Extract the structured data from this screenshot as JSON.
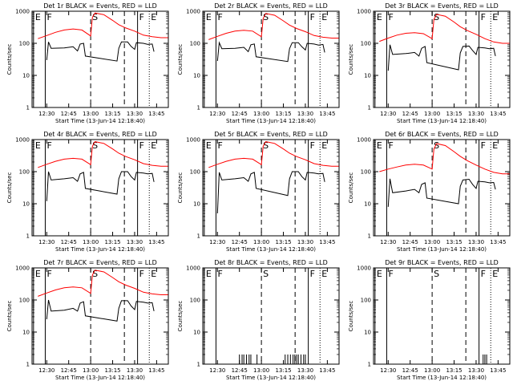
{
  "chart_data": {
    "type": "line",
    "layout": "3x3 grid",
    "y_scale": "log",
    "ylim": [
      1,
      1000
    ],
    "xlim_label_range": [
      "12:20",
      "13:53"
    ],
    "ylabel": "Counts/sec",
    "xlabel": "Start Time (13-Jun-14 12:18:40)",
    "x_tick_labels": [
      "12:30",
      "12:45",
      "13:00",
      "13:15",
      "13:30",
      "13:45"
    ],
    "y_tick_labels": [
      "1",
      "10",
      "100",
      "1000"
    ],
    "colors": {
      "events": "#000000",
      "lld": "#ff0000"
    },
    "markers": [
      {
        "label": "E",
        "time": "12:21",
        "style": "solid"
      },
      {
        "label": "F",
        "time": "12:29",
        "style": "solid"
      },
      {
        "label": "S",
        "time": "13:00",
        "style": "dashed"
      },
      {
        "label": "",
        "time": "13:23",
        "style": "dashed"
      },
      {
        "label": "F",
        "time": "13:32",
        "style": "solid"
      },
      {
        "label": "E",
        "time": "13:40",
        "style": "dotted"
      }
    ],
    "panels": [
      {
        "title": "Det 1r BLACK = Events, RED = LLD",
        "lld": [
          [
            12.4,
            140
          ],
          [
            12.5,
            175
          ],
          [
            12.6,
            220
          ],
          [
            12.7,
            260
          ],
          [
            12.8,
            280
          ],
          [
            12.9,
            260
          ],
          [
            13.0,
            170
          ],
          [
            13.02,
            650
          ],
          [
            13.05,
            880
          ],
          [
            13.15,
            780
          ],
          [
            13.25,
            520
          ],
          [
            13.32,
            380
          ],
          [
            13.4,
            300
          ],
          [
            13.5,
            240
          ],
          [
            13.6,
            180
          ],
          [
            13.7,
            160
          ],
          [
            13.8,
            150
          ],
          [
            13.88,
            150
          ]
        ],
        "events": [
          [
            12.5,
            30
          ],
          [
            12.52,
            110
          ],
          [
            12.55,
            70
          ],
          [
            12.7,
            72
          ],
          [
            12.8,
            78
          ],
          [
            12.85,
            58
          ],
          [
            12.88,
            95
          ],
          [
            12.92,
            100
          ],
          [
            12.94,
            40
          ],
          [
            13.3,
            28
          ],
          [
            13.32,
            70
          ],
          [
            13.35,
            110
          ],
          [
            13.42,
            110
          ],
          [
            13.46,
            80
          ],
          [
            13.5,
            65
          ],
          [
            13.52,
            105
          ],
          [
            13.6,
            100
          ],
          [
            13.65,
            92
          ],
          [
            13.7,
            95
          ],
          [
            13.72,
            55
          ]
        ]
      },
      {
        "title": "Det 2r BLACK = Events, RED = LLD",
        "lld": [
          [
            12.4,
            130
          ],
          [
            12.5,
            165
          ],
          [
            12.6,
            205
          ],
          [
            12.7,
            240
          ],
          [
            12.8,
            255
          ],
          [
            12.9,
            240
          ],
          [
            13.0,
            160
          ],
          [
            13.02,
            600
          ],
          [
            13.05,
            850
          ],
          [
            13.15,
            750
          ],
          [
            13.25,
            500
          ],
          [
            13.32,
            370
          ],
          [
            13.4,
            290
          ],
          [
            13.5,
            230
          ],
          [
            13.6,
            175
          ],
          [
            13.7,
            155
          ],
          [
            13.8,
            145
          ],
          [
            13.88,
            145
          ]
        ],
        "events": [
          [
            12.5,
            28
          ],
          [
            12.52,
            105
          ],
          [
            12.55,
            68
          ],
          [
            12.7,
            70
          ],
          [
            12.8,
            75
          ],
          [
            12.85,
            55
          ],
          [
            12.88,
            90
          ],
          [
            12.92,
            95
          ],
          [
            12.94,
            38
          ],
          [
            13.3,
            27
          ],
          [
            13.32,
            68
          ],
          [
            13.35,
            105
          ],
          [
            13.42,
            105
          ],
          [
            13.46,
            78
          ],
          [
            13.5,
            62
          ],
          [
            13.52,
            100
          ],
          [
            13.6,
            95
          ],
          [
            13.65,
            88
          ],
          [
            13.7,
            92
          ],
          [
            13.72,
            52
          ]
        ]
      },
      {
        "title": "Det 3r BLACK = Events, RED = LLD",
        "lld": [
          [
            12.4,
            115
          ],
          [
            12.5,
            145
          ],
          [
            12.6,
            180
          ],
          [
            12.7,
            205
          ],
          [
            12.8,
            215
          ],
          [
            12.9,
            200
          ],
          [
            13.0,
            140
          ],
          [
            13.02,
            550
          ],
          [
            13.05,
            800
          ],
          [
            13.15,
            700
          ],
          [
            13.25,
            460
          ],
          [
            13.32,
            330
          ],
          [
            13.4,
            250
          ],
          [
            13.5,
            190
          ],
          [
            13.6,
            140
          ],
          [
            13.7,
            110
          ],
          [
            13.8,
            100
          ],
          [
            13.88,
            100
          ]
        ],
        "events": [
          [
            12.5,
            14
          ],
          [
            12.52,
            90
          ],
          [
            12.55,
            45
          ],
          [
            12.7,
            48
          ],
          [
            12.8,
            52
          ],
          [
            12.85,
            40
          ],
          [
            12.88,
            70
          ],
          [
            12.92,
            80
          ],
          [
            12.94,
            25
          ],
          [
            13.3,
            15
          ],
          [
            13.32,
            50
          ],
          [
            13.35,
            80
          ],
          [
            13.42,
            82
          ],
          [
            13.46,
            60
          ],
          [
            13.5,
            45
          ],
          [
            13.52,
            75
          ],
          [
            13.6,
            72
          ],
          [
            13.65,
            68
          ],
          [
            13.7,
            70
          ],
          [
            13.72,
            40
          ]
        ]
      },
      {
        "title": "Det 4r BLACK = Events, RED = LLD",
        "lld": [
          [
            12.4,
            135
          ],
          [
            12.5,
            170
          ],
          [
            12.6,
            210
          ],
          [
            12.7,
            245
          ],
          [
            12.8,
            260
          ],
          [
            12.9,
            245
          ],
          [
            13.0,
            165
          ],
          [
            13.02,
            620
          ],
          [
            13.05,
            860
          ],
          [
            13.15,
            760
          ],
          [
            13.25,
            510
          ],
          [
            13.32,
            375
          ],
          [
            13.4,
            295
          ],
          [
            13.5,
            235
          ],
          [
            13.6,
            178
          ],
          [
            13.7,
            158
          ],
          [
            13.8,
            148
          ],
          [
            13.88,
            148
          ]
        ],
        "events": [
          [
            12.5,
            12
          ],
          [
            12.52,
            100
          ],
          [
            12.55,
            55
          ],
          [
            12.7,
            60
          ],
          [
            12.8,
            65
          ],
          [
            12.85,
            50
          ],
          [
            12.88,
            85
          ],
          [
            12.92,
            95
          ],
          [
            12.94,
            30
          ],
          [
            13.3,
            20
          ],
          [
            13.32,
            60
          ],
          [
            13.35,
            100
          ],
          [
            13.42,
            100
          ],
          [
            13.46,
            70
          ],
          [
            13.5,
            55
          ],
          [
            13.52,
            95
          ],
          [
            13.6,
            90
          ],
          [
            13.65,
            85
          ],
          [
            13.7,
            88
          ],
          [
            13.72,
            48
          ]
        ]
      },
      {
        "title": "Det 5r BLACK = Events, RED = LLD",
        "lld": [
          [
            12.4,
            135
          ],
          [
            12.5,
            170
          ],
          [
            12.6,
            210
          ],
          [
            12.7,
            245
          ],
          [
            12.8,
            260
          ],
          [
            12.9,
            245
          ],
          [
            13.0,
            165
          ],
          [
            13.02,
            620
          ],
          [
            13.05,
            860
          ],
          [
            13.15,
            760
          ],
          [
            13.25,
            510
          ],
          [
            13.32,
            375
          ],
          [
            13.4,
            295
          ],
          [
            13.5,
            235
          ],
          [
            13.6,
            178
          ],
          [
            13.7,
            158
          ],
          [
            13.8,
            148
          ],
          [
            13.88,
            148
          ]
        ],
        "events": [
          [
            12.5,
            5
          ],
          [
            12.52,
            95
          ],
          [
            12.55,
            55
          ],
          [
            12.7,
            60
          ],
          [
            12.8,
            65
          ],
          [
            12.85,
            50
          ],
          [
            12.88,
            85
          ],
          [
            12.92,
            95
          ],
          [
            12.94,
            30
          ],
          [
            13.3,
            18
          ],
          [
            13.32,
            60
          ],
          [
            13.35,
            100
          ],
          [
            13.42,
            100
          ],
          [
            13.46,
            70
          ],
          [
            13.5,
            55
          ],
          [
            13.52,
            95
          ],
          [
            13.6,
            90
          ],
          [
            13.65,
            85
          ],
          [
            13.7,
            88
          ],
          [
            13.72,
            48
          ]
        ]
      },
      {
        "title": "Det 6r BLACK = Events, RED = LLD",
        "lld": [
          [
            12.4,
            100
          ],
          [
            12.5,
            120
          ],
          [
            12.6,
            140
          ],
          [
            12.7,
            160
          ],
          [
            12.8,
            170
          ],
          [
            12.9,
            160
          ],
          [
            13.0,
            120
          ],
          [
            13.02,
            500
          ],
          [
            13.05,
            750
          ],
          [
            13.15,
            650
          ],
          [
            13.25,
            420
          ],
          [
            13.32,
            300
          ],
          [
            13.4,
            220
          ],
          [
            13.5,
            160
          ],
          [
            13.6,
            120
          ],
          [
            13.7,
            95
          ],
          [
            13.8,
            85
          ],
          [
            13.88,
            85
          ]
        ],
        "events": [
          [
            12.5,
            8
          ],
          [
            12.52,
            60
          ],
          [
            12.55,
            22
          ],
          [
            12.7,
            25
          ],
          [
            12.8,
            28
          ],
          [
            12.85,
            22
          ],
          [
            12.88,
            40
          ],
          [
            12.92,
            45
          ],
          [
            12.94,
            15
          ],
          [
            13.3,
            10
          ],
          [
            13.32,
            35
          ],
          [
            13.35,
            55
          ],
          [
            13.42,
            58
          ],
          [
            13.46,
            40
          ],
          [
            13.5,
            30
          ],
          [
            13.52,
            50
          ],
          [
            13.6,
            48
          ],
          [
            13.65,
            45
          ],
          [
            13.7,
            46
          ],
          [
            13.72,
            28
          ]
        ]
      },
      {
        "title": "Det 7r BLACK = Events, RED = LLD",
        "lld": [
          [
            12.4,
            130
          ],
          [
            12.5,
            165
          ],
          [
            12.6,
            205
          ],
          [
            12.7,
            240
          ],
          [
            12.8,
            255
          ],
          [
            12.9,
            240
          ],
          [
            13.0,
            160
          ],
          [
            13.02,
            600
          ],
          [
            13.05,
            850
          ],
          [
            13.15,
            750
          ],
          [
            13.25,
            500
          ],
          [
            13.32,
            370
          ],
          [
            13.4,
            290
          ],
          [
            13.5,
            230
          ],
          [
            13.6,
            175
          ],
          [
            13.7,
            155
          ],
          [
            13.8,
            145
          ],
          [
            13.88,
            145
          ]
        ],
        "events": [
          [
            12.5,
            25
          ],
          [
            12.52,
            100
          ],
          [
            12.55,
            45
          ],
          [
            12.7,
            48
          ],
          [
            12.8,
            55
          ],
          [
            12.85,
            45
          ],
          [
            12.88,
            80
          ],
          [
            12.92,
            88
          ],
          [
            12.94,
            32
          ],
          [
            13.3,
            22
          ],
          [
            13.32,
            55
          ],
          [
            13.35,
            95
          ],
          [
            13.42,
            95
          ],
          [
            13.46,
            65
          ],
          [
            13.5,
            50
          ],
          [
            13.52,
            90
          ],
          [
            13.6,
            85
          ],
          [
            13.65,
            80
          ],
          [
            13.7,
            82
          ],
          [
            13.72,
            45
          ]
        ]
      },
      {
        "title": "Det 8r BLACK = Events, RED = LLD",
        "lld": [],
        "events_spikes": [
          12.75,
          12.78,
          12.8,
          12.83,
          12.86,
          12.88,
          12.95,
          13.27,
          13.3,
          13.33,
          13.36,
          13.38,
          13.4,
          13.42,
          13.45,
          13.48,
          13.5
        ],
        "spike_value": 2
      },
      {
        "title": "Det 9r BLACK = Events, RED = LLD",
        "lld": [],
        "events_spikes": [
          13.58,
          13.6,
          13.62
        ],
        "spike_value": 2
      }
    ]
  }
}
